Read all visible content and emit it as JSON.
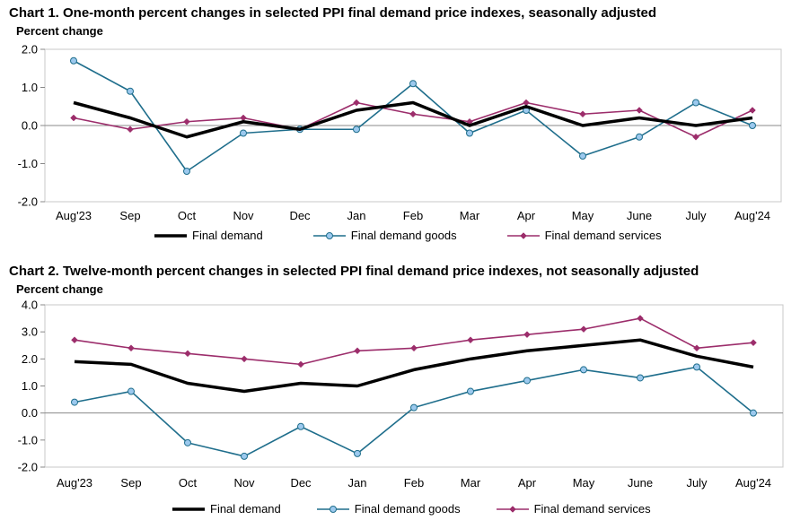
{
  "chart_data": [
    {
      "type": "line",
      "title": "Chart 1. One-month percent changes in selected PPI final demand price indexes, seasonally adjusted",
      "ylabel": "Percent change",
      "ylim": [
        -2.0,
        2.0
      ],
      "yticks": [
        "2.0",
        "1.0",
        "0.0",
        "-1.0",
        "-2.0"
      ],
      "ytick_values": [
        2,
        1,
        0,
        -1,
        -2
      ],
      "categories": [
        "Aug'23",
        "Sep",
        "Oct",
        "Nov",
        "Dec",
        "Jan",
        "Feb",
        "Mar",
        "Apr",
        "May",
        "June",
        "July",
        "Aug'24"
      ],
      "legend_position": "bottom",
      "series": [
        {
          "name": "Final demand",
          "color": "#000000",
          "marker": "none",
          "values": [
            0.6,
            0.2,
            -0.3,
            0.1,
            -0.1,
            0.4,
            0.6,
            0.0,
            0.5,
            0.0,
            0.2,
            0.0,
            0.2
          ]
        },
        {
          "name": "Final demand goods",
          "color": "#1f6e8c",
          "marker": "circle",
          "values": [
            1.7,
            0.9,
            -1.2,
            -0.2,
            -0.1,
            -0.1,
            1.1,
            -0.2,
            0.4,
            -0.8,
            -0.3,
            0.6,
            0.0
          ]
        },
        {
          "name": "Final demand services",
          "color": "#9c2d6b",
          "marker": "diamond",
          "values": [
            0.2,
            -0.1,
            0.1,
            0.2,
            -0.1,
            0.6,
            0.3,
            0.1,
            0.6,
            0.3,
            0.4,
            -0.3,
            0.4
          ]
        }
      ]
    },
    {
      "type": "line",
      "title": "Chart 2. Twelve-month percent changes in selected PPI final demand price indexes, not seasonally adjusted",
      "ylabel": "Percent change",
      "ylim": [
        -2.0,
        4.0
      ],
      "yticks": [
        "4.0",
        "3.0",
        "2.0",
        "1.0",
        "0.0",
        "-1.0",
        "-2.0"
      ],
      "ytick_values": [
        4,
        3,
        2,
        1,
        0,
        -1,
        -2
      ],
      "categories": [
        "Aug'23",
        "Sep",
        "Oct",
        "Nov",
        "Dec",
        "Jan",
        "Feb",
        "Mar",
        "Apr",
        "May",
        "June",
        "July",
        "Aug'24"
      ],
      "legend_position": "bottom",
      "series": [
        {
          "name": "Final demand",
          "color": "#000000",
          "marker": "none",
          "values": [
            1.9,
            1.8,
            1.1,
            0.8,
            1.1,
            1.0,
            1.6,
            2.0,
            2.3,
            2.5,
            2.7,
            2.1,
            1.7
          ]
        },
        {
          "name": "Final demand goods",
          "color": "#1f6e8c",
          "marker": "circle",
          "values": [
            0.4,
            0.8,
            -1.1,
            -1.6,
            -0.5,
            -1.5,
            0.2,
            0.8,
            1.2,
            1.6,
            1.3,
            1.7,
            0.0
          ]
        },
        {
          "name": "Final demand services",
          "color": "#9c2d6b",
          "marker": "diamond",
          "values": [
            2.7,
            2.4,
            2.2,
            2.0,
            1.8,
            2.3,
            2.4,
            2.7,
            2.9,
            3.1,
            3.5,
            2.4,
            2.6
          ]
        }
      ]
    }
  ]
}
